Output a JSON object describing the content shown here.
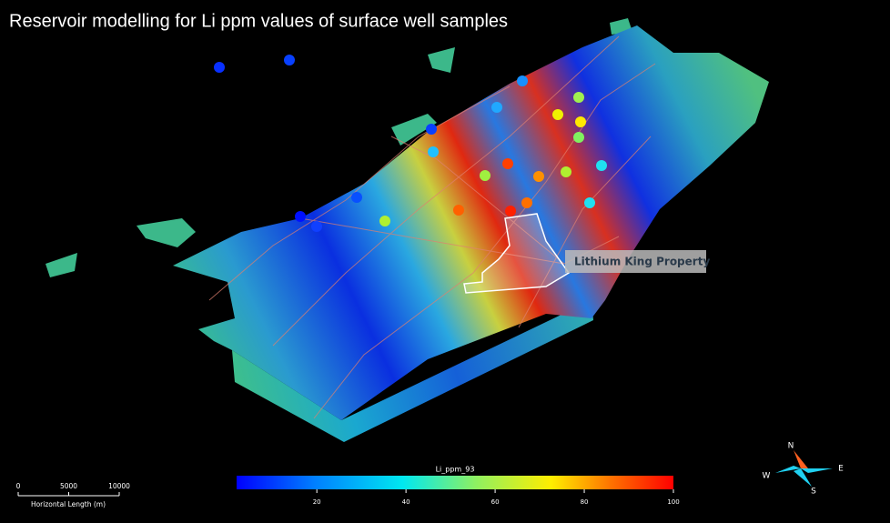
{
  "title": "Reservoir modelling for Li ppm values of surface well samples",
  "property_label": "Lithium King Property",
  "colorbar": {
    "label": "Li_ppm_93",
    "range": [
      2,
      100
    ],
    "ticks": [
      20,
      40,
      60,
      80,
      100
    ]
  },
  "scale_bar": {
    "label": "Horizontal Length (m)",
    "range": [
      0,
      10000
    ],
    "ticks": [
      0,
      5000,
      10000
    ]
  },
  "compass": {
    "north": "N",
    "east": "E",
    "south": "S",
    "west": "W"
  }
}
